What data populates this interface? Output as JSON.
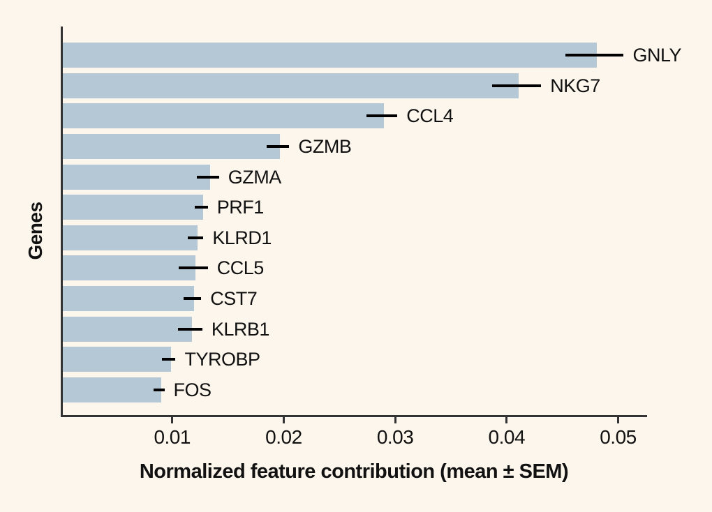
{
  "figure": {
    "background_color": "#fdf6ec",
    "bar_color": "#b5c8d6",
    "axis_color": "#333333",
    "error_bar_color": "#000000",
    "text_color": "#111111"
  },
  "chart_data": {
    "type": "bar",
    "orientation": "horizontal",
    "title": "",
    "xlabel": "Normalized feature contribution (mean ± SEM)",
    "ylabel": "Genes",
    "xlim": [
      0,
      0.0526
    ],
    "xticks": [
      0.01,
      0.02,
      0.03,
      0.04,
      0.05
    ],
    "xtick_labels": [
      "0.01",
      "0.02",
      "0.03",
      "0.04",
      "0.05"
    ],
    "grid": false,
    "legend": null,
    "categories": [
      "GNLY",
      "NKG7",
      "CCL4",
      "GZMB",
      "GZMA",
      "PRF1",
      "KLRD1",
      "CCL5",
      "CST7",
      "KLRB1",
      "TYROBP",
      "FOS"
    ],
    "series": [
      {
        "name": "mean normalized feature contribution",
        "values": [
          0.0479,
          0.0409,
          0.0288,
          0.0195,
          0.0132,
          0.0126,
          0.0121,
          0.0119,
          0.0118,
          0.0116,
          0.0097,
          0.0088
        ],
        "sem": [
          0.0026,
          0.0022,
          0.0014,
          0.001,
          0.001,
          0.0006,
          0.0007,
          0.0013,
          0.0008,
          0.0011,
          0.0006,
          0.0005
        ]
      }
    ]
  }
}
